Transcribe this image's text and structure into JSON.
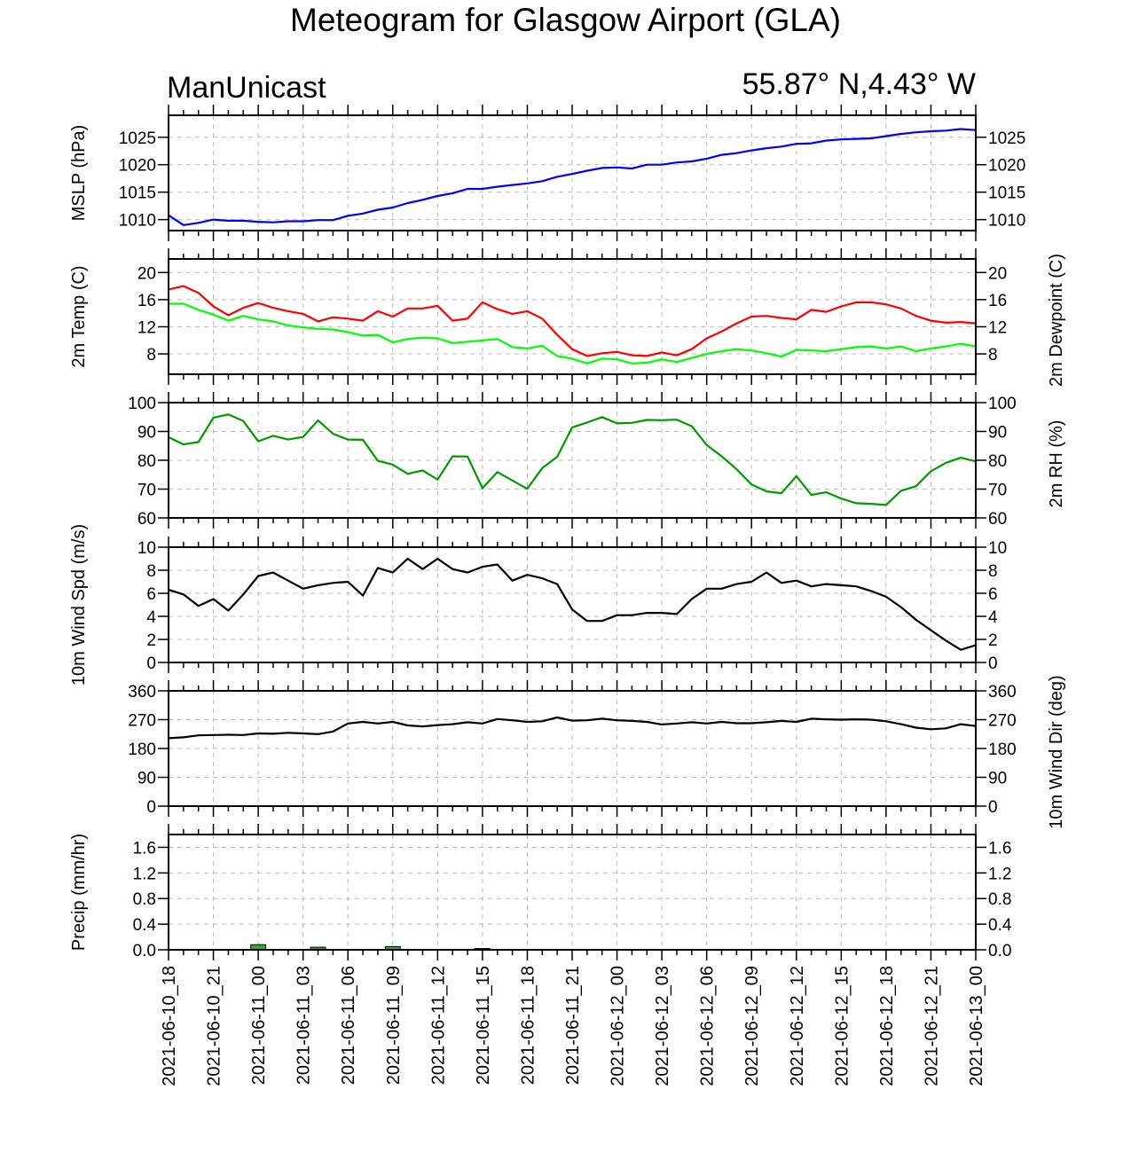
{
  "title": "Meteogram for Glasgow Airport (GLA)",
  "model": "ManUnicast",
  "location": "55.87° N,4.43° W",
  "time_labels": [
    "2021-06-10_18",
    "2021-06-10_21",
    "2021-06-11_00",
    "2021-06-11_03",
    "2021-06-11_06",
    "2021-06-11_09",
    "2021-06-11_12",
    "2021-06-11_15",
    "2021-06-11_18",
    "2021-06-11_21",
    "2021-06-12_00",
    "2021-06-12_03",
    "2021-06-12_06",
    "2021-06-12_09",
    "2021-06-12_12",
    "2021-06-12_15",
    "2021-06-12_18",
    "2021-06-12_21",
    "2021-06-13_00"
  ],
  "chart_data": [
    {
      "type": "line",
      "ylabel": "MSLP (hPa)",
      "ylim": [
        1008,
        1029
      ],
      "yticks": [
        1010,
        1015,
        1020,
        1025
      ],
      "ytick_labels": [
        "1010",
        "1015",
        "1020",
        "1025"
      ],
      "grid": true,
      "x_hours": [
        0,
        1,
        2,
        3,
        4,
        5,
        6,
        7,
        8,
        9,
        10,
        11,
        12,
        13,
        14,
        15,
        16,
        17,
        18,
        19,
        20,
        21,
        22,
        23,
        24,
        25,
        26,
        27,
        28,
        29,
        30,
        31,
        32,
        33,
        34,
        35,
        36,
        37,
        38,
        39,
        40,
        41,
        42,
        43,
        44,
        45,
        46,
        47,
        48,
        49,
        50,
        51,
        52,
        53,
        54
      ],
      "series": [
        {
          "color": "#0000ff",
          "values": [
            1010.8,
            1009.0,
            1009.4,
            1010.0,
            1009.8,
            1009.8,
            1009.6,
            1009.5,
            1009.7,
            1009.7,
            1009.9,
            1009.9,
            1010.7,
            1011.1,
            1011.8,
            1012.2,
            1013.0,
            1013.6,
            1014.3,
            1014.8,
            1015.6,
            1015.6,
            1016.0,
            1016.3,
            1016.6,
            1017.0,
            1017.8,
            1018.3,
            1018.9,
            1019.4,
            1019.5,
            1019.3,
            1020.0,
            1020.0,
            1020.4,
            1020.6,
            1021.1,
            1021.8,
            1022.1,
            1022.6,
            1023.0,
            1023.3,
            1023.8,
            1023.9,
            1024.4,
            1024.6,
            1024.7,
            1024.8,
            1025.2,
            1025.6,
            1025.9,
            1026.1,
            1026.2,
            1026.5,
            1026.3
          ]
        }
      ]
    },
    {
      "type": "line",
      "ylabel": "2m Temp (C)",
      "ylabel_right": "2m Dewpoint (C)",
      "ylim": [
        5,
        22
      ],
      "yticks": [
        8,
        12,
        16,
        20
      ],
      "ytick_labels": [
        "8",
        "12",
        "16",
        "20"
      ],
      "grid": true,
      "x_hours": [
        0,
        1,
        2,
        3,
        4,
        5,
        6,
        7,
        8,
        9,
        10,
        11,
        12,
        13,
        14,
        15,
        16,
        17,
        18,
        19,
        20,
        21,
        22,
        23,
        24,
        25,
        26,
        27,
        28,
        29,
        30,
        31,
        32,
        33,
        34,
        35,
        36,
        37,
        38,
        39,
        40,
        41,
        42,
        43,
        44,
        45,
        46,
        47,
        48,
        49,
        50,
        51,
        52,
        53,
        54
      ],
      "series": [
        {
          "color": "#ff0000",
          "values": [
            17.5,
            18.0,
            17.0,
            15.0,
            13.7,
            14.8,
            15.5,
            14.8,
            14.3,
            13.9,
            12.8,
            13.4,
            13.2,
            12.9,
            14.3,
            13.5,
            14.7,
            14.7,
            15.1,
            12.9,
            13.2,
            15.6,
            14.6,
            13.9,
            14.3,
            13.2,
            10.8,
            8.7,
            7.7,
            8.1,
            8.3,
            7.8,
            7.7,
            8.2,
            7.8,
            8.7,
            10.3,
            11.3,
            12.5,
            13.5,
            13.6,
            13.3,
            13.1,
            14.5,
            14.2,
            15.0,
            15.6,
            15.6,
            15.3,
            14.7,
            13.6,
            12.9,
            12.6,
            12.7,
            12.5
          ]
        },
        {
          "color": "#00ff00",
          "values": [
            15.4,
            15.4,
            14.5,
            13.8,
            12.9,
            13.6,
            13.1,
            12.8,
            12.2,
            11.9,
            11.7,
            11.6,
            11.2,
            10.7,
            10.8,
            9.7,
            10.2,
            10.4,
            10.3,
            9.6,
            9.8,
            10.0,
            10.2,
            9.0,
            8.8,
            9.2,
            7.7,
            7.3,
            6.6,
            7.3,
            7.2,
            6.6,
            6.7,
            7.2,
            6.8,
            7.4,
            8.0,
            8.4,
            8.7,
            8.5,
            8.1,
            7.6,
            8.6,
            8.5,
            8.4,
            8.7,
            9.0,
            9.1,
            8.8,
            9.1,
            8.4,
            8.8,
            9.1,
            9.5,
            9.1
          ]
        }
      ]
    },
    {
      "type": "line",
      "ylabel_right": "2m RH (%)",
      "ylim": [
        60,
        100
      ],
      "yticks": [
        60,
        70,
        80,
        90,
        100
      ],
      "ytick_labels": [
        "60",
        "70",
        "80",
        "90",
        "100"
      ],
      "grid": true,
      "x_hours": [
        0,
        1,
        2,
        3,
        4,
        5,
        6,
        7,
        8,
        9,
        10,
        11,
        12,
        13,
        14,
        15,
        16,
        17,
        18,
        19,
        20,
        21,
        22,
        23,
        24,
        25,
        26,
        27,
        28,
        29,
        30,
        31,
        32,
        33,
        34,
        35,
        36,
        37,
        38,
        39,
        40,
        41,
        42,
        43,
        44,
        45,
        46,
        47,
        48,
        49,
        50,
        51,
        52,
        53,
        54
      ],
      "series": [
        {
          "color": "#009900",
          "values": [
            88,
            85.5,
            86.3,
            94.8,
            95.9,
            93.6,
            86.6,
            88.5,
            87.2,
            88.1,
            93.8,
            89.2,
            87.2,
            87.1,
            79.8,
            78.5,
            75.3,
            76.5,
            73.3,
            81.4,
            81.3,
            70.3,
            75.9,
            73.0,
            70.1,
            77.3,
            81.2,
            91.4,
            93.1,
            95.0,
            92.8,
            93.0,
            94.0,
            93.9,
            94.1,
            91.8,
            85.3,
            81.4,
            76.9,
            71.6,
            69.2,
            68.6,
            74.5,
            68.0,
            68.9,
            66.7,
            65.1,
            64.9,
            64.5,
            69.4,
            71.0,
            76.2,
            79.1,
            80.9,
            79.6
          ]
        }
      ]
    },
    {
      "type": "line",
      "ylabel": "10m Wind Spd (m/s)",
      "ylim": [
        0,
        10
      ],
      "yticks": [
        0,
        2,
        4,
        6,
        8,
        10
      ],
      "ytick_labels": [
        "0",
        "2",
        "4",
        "6",
        "8",
        "10"
      ],
      "grid": true,
      "x_hours": [
        0,
        1,
        2,
        3,
        4,
        5,
        6,
        7,
        8,
        9,
        10,
        11,
        12,
        13,
        14,
        15,
        16,
        17,
        18,
        19,
        20,
        21,
        22,
        23,
        24,
        25,
        26,
        27,
        28,
        29,
        30,
        31,
        32,
        33,
        34,
        35,
        36,
        37,
        38,
        39,
        40,
        41,
        42,
        43,
        44,
        45,
        46,
        47,
        48,
        49,
        50,
        51,
        52,
        53,
        54
      ],
      "series": [
        {
          "color": "#000000",
          "values": [
            6.3,
            5.9,
            4.9,
            5.5,
            4.5,
            5.9,
            7.5,
            7.8,
            7.1,
            6.4,
            6.7,
            6.9,
            7.0,
            5.8,
            8.2,
            7.8,
            9.0,
            8.1,
            9.0,
            8.1,
            7.8,
            8.3,
            8.5,
            7.1,
            7.6,
            7.3,
            6.8,
            4.6,
            3.6,
            3.6,
            4.1,
            4.1,
            4.3,
            4.3,
            4.2,
            5.5,
            6.4,
            6.4,
            6.8,
            7.0,
            7.8,
            6.9,
            7.1,
            6.6,
            6.8,
            6.7,
            6.6,
            6.2,
            5.7,
            4.8,
            3.7,
            2.8,
            1.9,
            1.1,
            1.5
          ]
        }
      ]
    },
    {
      "type": "line",
      "ylabel_right": "10m Wind Dir (deg)",
      "ylim": [
        0,
        360
      ],
      "yticks": [
        0,
        90,
        180,
        270,
        360
      ],
      "ytick_labels": [
        "0",
        "90",
        "180",
        "270",
        "360"
      ],
      "grid": true,
      "x_hours": [
        0,
        1,
        2,
        3,
        4,
        5,
        6,
        7,
        8,
        9,
        10,
        11,
        12,
        13,
        14,
        15,
        16,
        17,
        18,
        19,
        20,
        21,
        22,
        23,
        24,
        25,
        26,
        27,
        28,
        29,
        30,
        31,
        32,
        33,
        34,
        35,
        36,
        37,
        38,
        39,
        40,
        41,
        42,
        43,
        44,
        45,
        46,
        47,
        48,
        49,
        50,
        51,
        52,
        53,
        54
      ],
      "series": [
        {
          "color": "#000000",
          "values": [
            212,
            215,
            221,
            222,
            223,
            222,
            227,
            226,
            229,
            227,
            225,
            233,
            258,
            263,
            258,
            263,
            252,
            249,
            253,
            256,
            262,
            258,
            272,
            268,
            263,
            265,
            277,
            267,
            268,
            273,
            268,
            266,
            263,
            255,
            258,
            262,
            258,
            263,
            259,
            259,
            262,
            266,
            263,
            273,
            271,
            270,
            271,
            270,
            265,
            256,
            245,
            240,
            243,
            256,
            250
          ]
        }
      ]
    },
    {
      "type": "bar",
      "ylabel": "Precip (mm/hr)",
      "ylim": [
        0,
        1.8
      ],
      "yticks": [
        0.0,
        0.4,
        0.8,
        1.2,
        1.6
      ],
      "ytick_labels": [
        "0.0",
        "0.4",
        "0.8",
        "1.2",
        "1.6"
      ],
      "grid": true,
      "bar_color": "#33aa33",
      "bars": [
        {
          "hour": 6,
          "value": 0.08
        },
        {
          "hour": 10,
          "value": 0.04
        },
        {
          "hour": 15,
          "value": 0.05
        },
        {
          "hour": 21,
          "value": 0.02
        }
      ]
    }
  ]
}
